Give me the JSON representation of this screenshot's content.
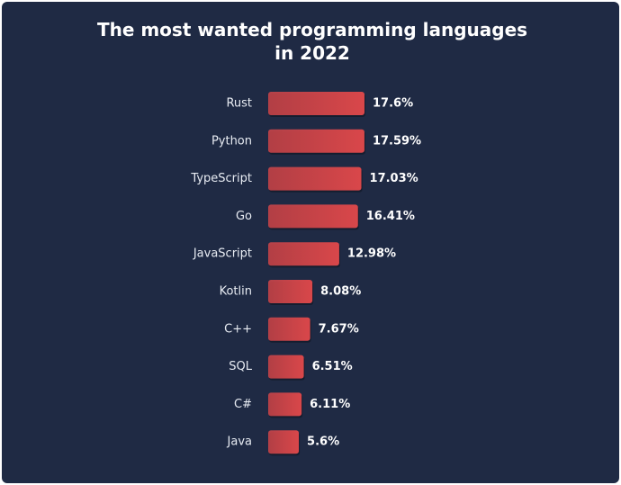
{
  "chart_data": {
    "type": "bar",
    "orientation": "horizontal",
    "title": "The most wanted programming languages in 2022",
    "categories": [
      "Rust",
      "Python",
      "TypeScript",
      "Go",
      "JavaScript",
      "Kotlin",
      "C++",
      "SQL",
      "C#",
      "Java"
    ],
    "values": [
      17.6,
      17.59,
      17.03,
      16.41,
      12.98,
      8.08,
      7.67,
      6.51,
      6.11,
      5.6
    ],
    "value_labels": [
      "17.6%",
      "17.59%",
      "17.03%",
      "16.41%",
      "12.98%",
      "8.08%",
      "7.67%",
      "6.51%",
      "6.11%",
      "5.6%"
    ],
    "color": "#d9474a"
  }
}
